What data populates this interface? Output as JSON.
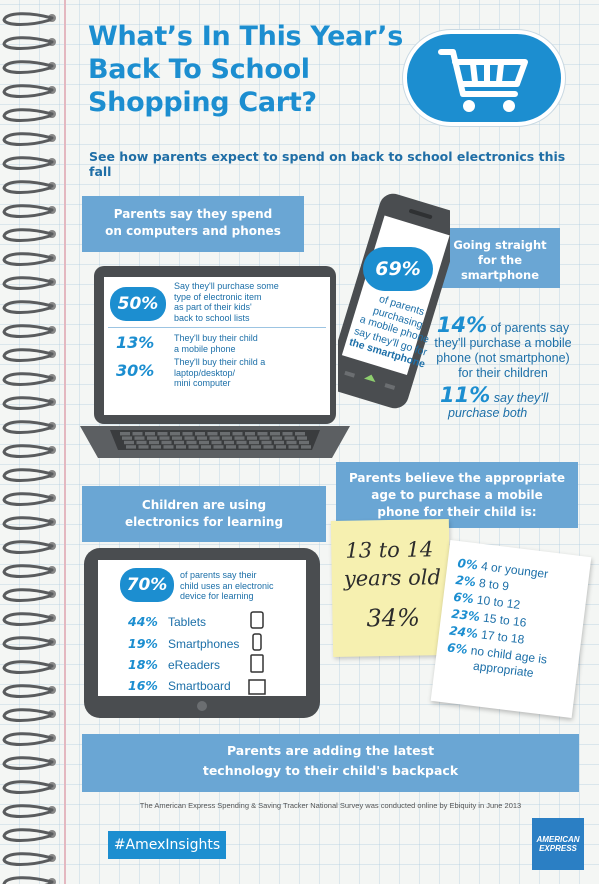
{
  "header": {
    "title_lines": [
      "What’s In This Year’s",
      "Back To School",
      "Shopping Cart?"
    ],
    "subtitle": "See how parents expect to spend on back to school electronics this fall",
    "cart_icon": "shopping-cart-icon"
  },
  "computers_phones": {
    "band_lines": [
      "Parents say they spend",
      "on computers and phones"
    ],
    "stats": [
      {
        "pct": "50%",
        "text_lines": [
          "Say they'll purchase some",
          "type of electronic item",
          "as part of their kids'",
          "back to school lists"
        ]
      },
      {
        "pct": "13%",
        "text_lines": [
          "They'll buy their child",
          "a mobile phone"
        ]
      },
      {
        "pct": "30%",
        "text_lines": [
          "They'll buy their child a",
          "laptop/desktop/",
          "mini computer"
        ]
      }
    ]
  },
  "smartphone": {
    "pct": "69%",
    "text_lines": [
      "of parents",
      "purchasing",
      "a mobile phone",
      "say they'll go for",
      "the smartphone"
    ],
    "band_lines": [
      "Going straight",
      "for the",
      "smartphone"
    ],
    "stat1_pct": "14%",
    "stat1_lines": [
      "of parents say",
      "they'll purchase a mobile",
      "phone (not smartphone)",
      "for their children"
    ],
    "stat2_pct": "11%",
    "stat2_lines": [
      "say they'll",
      "purchase both"
    ]
  },
  "learning": {
    "band_lines": [
      "Children are using",
      "electronics for learning"
    ],
    "pct": "70%",
    "text_lines": [
      "of parents say their",
      "child uses an electronic",
      "device for learning"
    ],
    "devices": [
      {
        "pct": "44%",
        "label": "Tablets",
        "icon": "tablet-icon"
      },
      {
        "pct": "19%",
        "label": "Smartphones",
        "icon": "smartphone-icon"
      },
      {
        "pct": "18%",
        "label": "eReaders",
        "icon": "ereader-icon"
      },
      {
        "pct": "16%",
        "label": "Smartboard",
        "icon": "smartboard-icon"
      }
    ]
  },
  "age": {
    "band_lines": [
      "Parents believe the appropriate",
      "age to purchase a mobile",
      "phone for their child is:"
    ],
    "sticky_lines": [
      "13 to 14",
      "years old"
    ],
    "sticky_pct": "34%",
    "breakdown": [
      {
        "pct": "0%",
        "label": "4 or younger"
      },
      {
        "pct": "2%",
        "label": "8 to 9"
      },
      {
        "pct": "6%",
        "label": "10 to 12"
      },
      {
        "pct": "23%",
        "label": "15 to 16"
      },
      {
        "pct": "24%",
        "label": "17 to 18"
      },
      {
        "pct": "6%",
        "label": "no child age is"
      }
    ],
    "breakdown_last_line": "appropriate"
  },
  "backpack": {
    "band_lines": [
      "Parents are adding the latest",
      "technology to their child's backpack"
    ]
  },
  "footer": {
    "note": "The American Express Spending & Saving Tracker National Survey was conducted online by Ebiquity in June 2013",
    "hashtag": "#AmexInsights",
    "logo_lines": [
      "AMERICAN",
      "EXPRESS"
    ]
  },
  "colors": {
    "accent": "#1c8ed0",
    "band": "#6aa6d4",
    "sticky": "#f6f0b0"
  }
}
